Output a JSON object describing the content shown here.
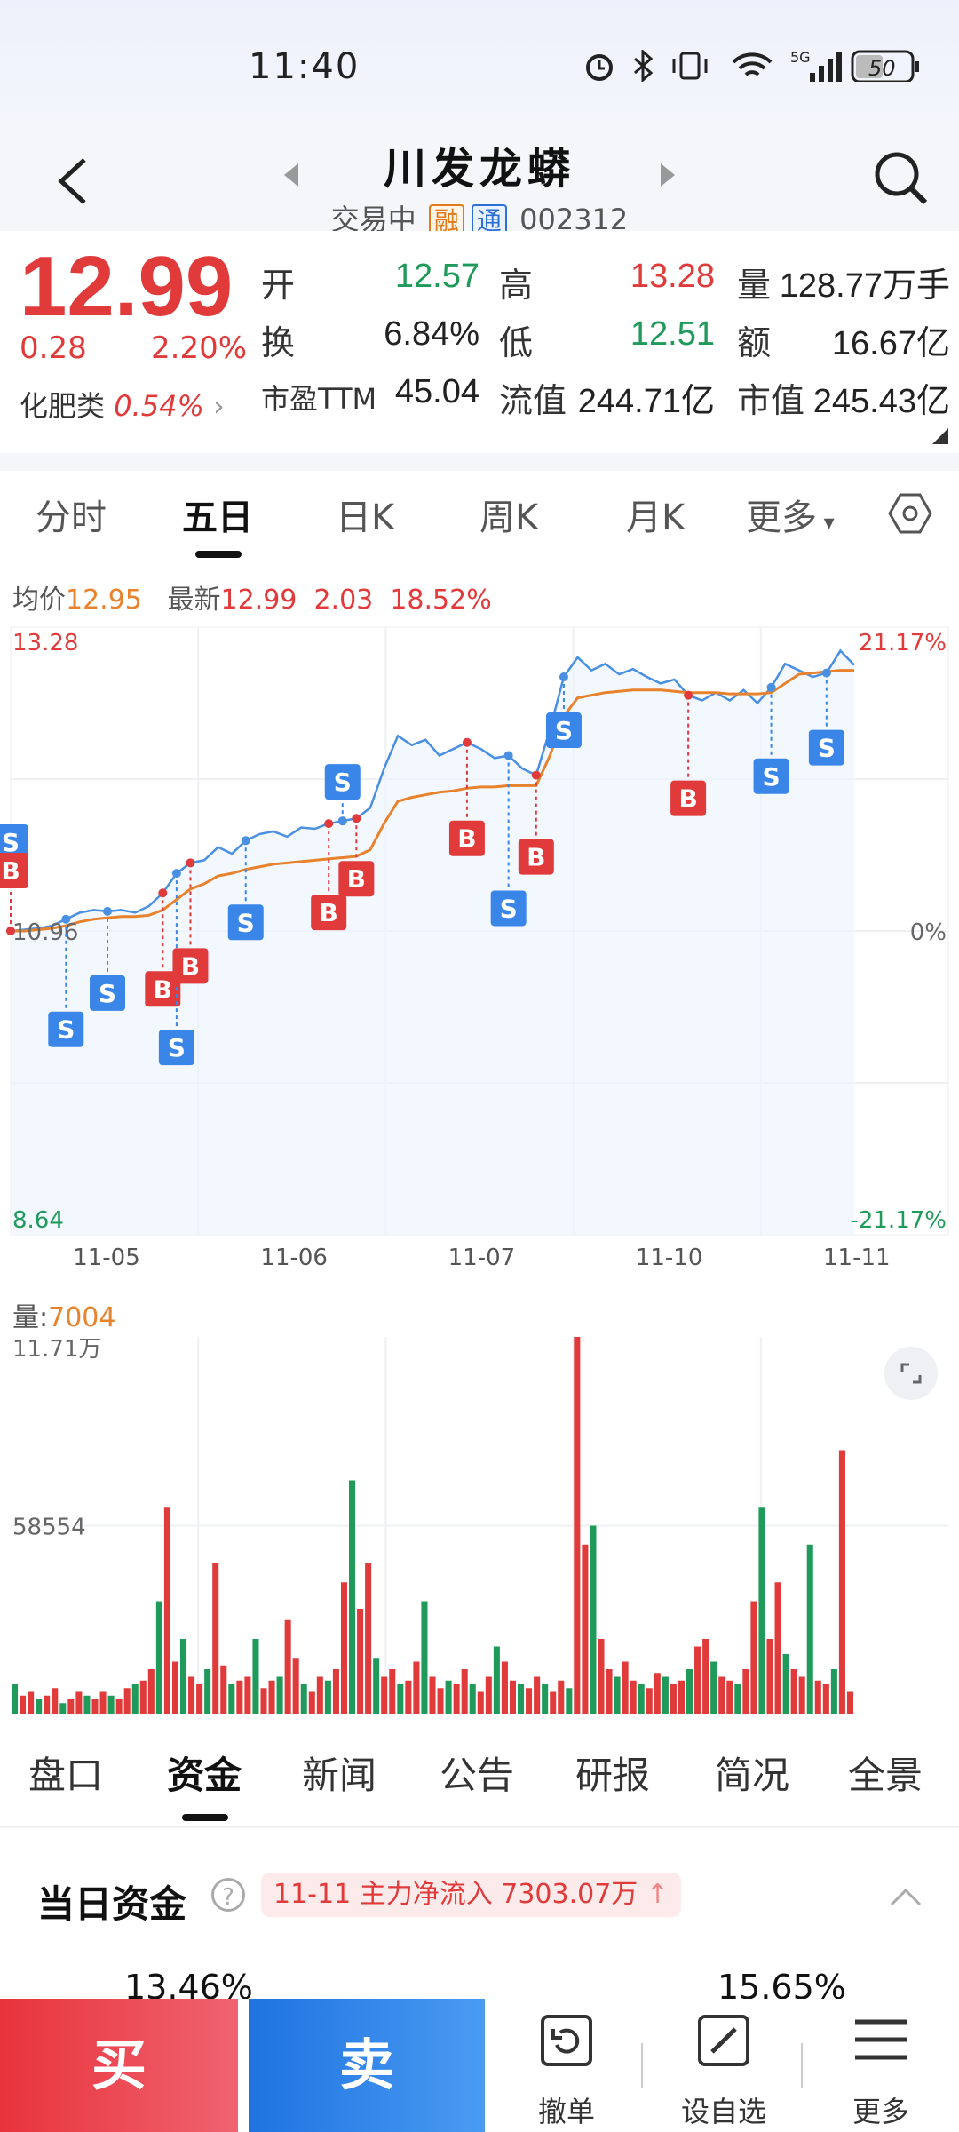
{
  "status_bar": {
    "time": "11:40",
    "battery": "50",
    "network": "5G"
  },
  "header": {
    "stock_name": "川发龙蟒",
    "status": "交易中",
    "tag_margin": "融",
    "tag_connect": "通",
    "code": "002312"
  },
  "quote": {
    "price": "12.99",
    "change": "0.28",
    "change_pct": "2.20%",
    "sector_name": "化肥类",
    "sector_pct": "0.54%",
    "rows": [
      [
        {
          "label": "开",
          "value": "12.57",
          "color": "green"
        },
        {
          "label": "高",
          "value": "13.28",
          "color": "red"
        },
        {
          "label": "量",
          "value": "128.77万手",
          "color": "dark"
        }
      ],
      [
        {
          "label": "换",
          "value": "6.84%",
          "color": "dark"
        },
        {
          "label": "低",
          "value": "12.51",
          "color": "green"
        },
        {
          "label": "额",
          "value": "16.67亿",
          "color": "dark"
        }
      ],
      [
        {
          "label": "市盈TTM",
          "value": "45.04",
          "color": "dark"
        },
        {
          "label": "流值",
          "value": "244.71亿",
          "color": "dark"
        },
        {
          "label": "市值",
          "value": "245.43亿",
          "color": "dark"
        }
      ]
    ]
  },
  "chart_tabs": [
    "分时",
    "五日",
    "日K",
    "周K",
    "月K",
    "更多"
  ],
  "chart_tabs_active": 1,
  "chart_info": {
    "avg_label": "均价",
    "avg_value": "12.95",
    "latest_label": "最新",
    "latest_value": "12.99",
    "latest_change": "2.03",
    "latest_pct": "18.52%"
  },
  "chart_data": {
    "type": "line",
    "title": "",
    "x_ticks": [
      "11-05",
      "11-06",
      "11-07",
      "11-10",
      "11-11"
    ],
    "y_left": {
      "max": "13.28",
      "mid": "10.96",
      "min": "8.64"
    },
    "y_right": {
      "max": "21.17%",
      "mid": "0%",
      "min": "-21.17%"
    },
    "ylim": [
      8.64,
      13.28
    ],
    "series": [
      {
        "values": [
          10.96,
          10.97,
          10.98,
          11.0,
          11.05,
          11.1,
          11.12,
          11.11,
          11.12,
          11.1,
          11.15,
          11.25,
          11.4,
          11.48,
          11.5,
          11.6,
          11.55,
          11.65,
          11.7,
          11.72,
          11.68,
          11.75,
          11.74,
          11.78,
          11.8,
          11.82,
          11.9,
          12.2,
          12.45,
          12.38,
          12.42,
          12.3,
          12.35,
          12.4,
          12.35,
          12.28,
          12.3,
          12.2,
          12.15,
          12.5,
          12.9,
          13.05,
          12.95,
          13.0,
          12.92,
          12.96,
          12.9,
          12.85,
          12.88,
          12.76,
          12.72,
          12.78,
          12.72,
          12.8,
          12.7,
          12.82,
          13.0,
          12.95,
          12.9,
          12.93,
          13.1,
          12.99
        ]
      },
      {
        "values": [
          10.96,
          10.96,
          10.97,
          10.98,
          11.0,
          11.03,
          11.05,
          11.06,
          11.07,
          11.07,
          11.08,
          11.12,
          11.2,
          11.28,
          11.32,
          11.38,
          11.4,
          11.43,
          11.45,
          11.47,
          11.48,
          11.49,
          11.5,
          11.51,
          11.52,
          11.53,
          11.58,
          11.78,
          11.95,
          11.98,
          12.0,
          12.02,
          12.03,
          12.05,
          12.06,
          12.06,
          12.07,
          12.07,
          12.07,
          12.3,
          12.6,
          12.74,
          12.76,
          12.78,
          12.79,
          12.8,
          12.8,
          12.8,
          12.79,
          12.78,
          12.78,
          12.78,
          12.77,
          12.77,
          12.77,
          12.78,
          12.85,
          12.92,
          12.93,
          12.94,
          12.95,
          12.95
        ]
      }
    ],
    "signals": [
      {
        "i": 0,
        "type": "S",
        "dir": "up",
        "len": 1
      },
      {
        "i": 0,
        "type": "B",
        "dir": "up",
        "len": 0.6
      },
      {
        "i": 4,
        "type": "S",
        "dir": "down",
        "len": 1.3
      },
      {
        "i": 7,
        "type": "S",
        "dir": "down",
        "len": 0.9
      },
      {
        "i": 11,
        "type": "B",
        "dir": "down",
        "len": 1.1
      },
      {
        "i": 12,
        "type": "S",
        "dir": "down",
        "len": 2.2
      },
      {
        "i": 13,
        "type": "B",
        "dir": "down",
        "len": 1.2
      },
      {
        "i": 17,
        "type": "S",
        "dir": "down",
        "len": 0.9
      },
      {
        "i": 23,
        "type": "B",
        "dir": "down",
        "len": 1.0
      },
      {
        "i": 24,
        "type": "S",
        "dir": "up",
        "len": 0.3
      },
      {
        "i": 25,
        "type": "B",
        "dir": "down",
        "len": 0.6
      },
      {
        "i": 33,
        "type": "B",
        "dir": "down",
        "len": 1.1
      },
      {
        "i": 36,
        "type": "S",
        "dir": "down",
        "len": 1.9
      },
      {
        "i": 38,
        "type": "B",
        "dir": "down",
        "len": 0.9
      },
      {
        "i": 40,
        "type": "S",
        "dir": "down",
        "len": 0.5
      },
      {
        "i": 49,
        "type": "B",
        "dir": "down",
        "len": 1.2
      },
      {
        "i": 55,
        "type": "S",
        "dir": "down",
        "len": 1.0
      },
      {
        "i": 59,
        "type": "S",
        "dir": "down",
        "len": 0.8
      }
    ],
    "volume": {
      "label": "量",
      "value": "7004",
      "max_label": "11.71万",
      "mid_label": "58554",
      "ylim": [
        0,
        117100
      ],
      "bars": [
        8,
        5,
        6,
        4,
        5,
        7,
        3,
        4,
        6,
        5,
        4,
        6,
        5,
        4,
        7,
        8,
        9,
        12,
        30,
        55,
        14,
        20,
        10,
        8,
        12,
        40,
        13,
        8,
        9,
        10,
        20,
        7,
        9,
        10,
        25,
        15,
        8,
        6,
        10,
        9,
        12,
        35,
        62,
        28,
        40,
        15,
        10,
        12,
        8,
        9,
        14,
        30,
        10,
        7,
        9,
        8,
        12,
        8,
        6,
        10,
        18,
        14,
        9,
        8,
        7,
        10,
        8,
        6,
        9,
        7,
        100,
        45,
        50,
        20,
        12,
        10,
        14,
        9,
        8,
        7,
        11,
        10,
        8,
        9,
        12,
        18,
        20,
        14,
        10,
        9,
        8,
        12,
        30,
        55,
        20,
        35,
        16,
        12,
        10,
        45,
        9,
        8,
        12,
        70,
        6
      ]
    }
  },
  "info_tabs": [
    "盘口",
    "资金",
    "新闻",
    "公告",
    "研报",
    "简况",
    "全景"
  ],
  "info_tabs_active": 1,
  "capital": {
    "title": "当日资金",
    "flow_text": "11-11 主力净流入 7303.07万",
    "pct_left": "13.46%",
    "pct_right": "15.65%"
  },
  "bottom_bar": {
    "buy": "买",
    "sell": "卖",
    "items": [
      {
        "label": "撤单",
        "icon": "undo-icon"
      },
      {
        "label": "设自选",
        "icon": "edit-icon"
      },
      {
        "label": "更多",
        "icon": "menu-icon"
      }
    ]
  },
  "colors": {
    "up": "#e03a3a",
    "down": "#1f9a5a",
    "line": "#4a90e2",
    "avg": "#e8822c",
    "sell_box": "#3a86e8",
    "buy_box": "#e03a3a"
  }
}
